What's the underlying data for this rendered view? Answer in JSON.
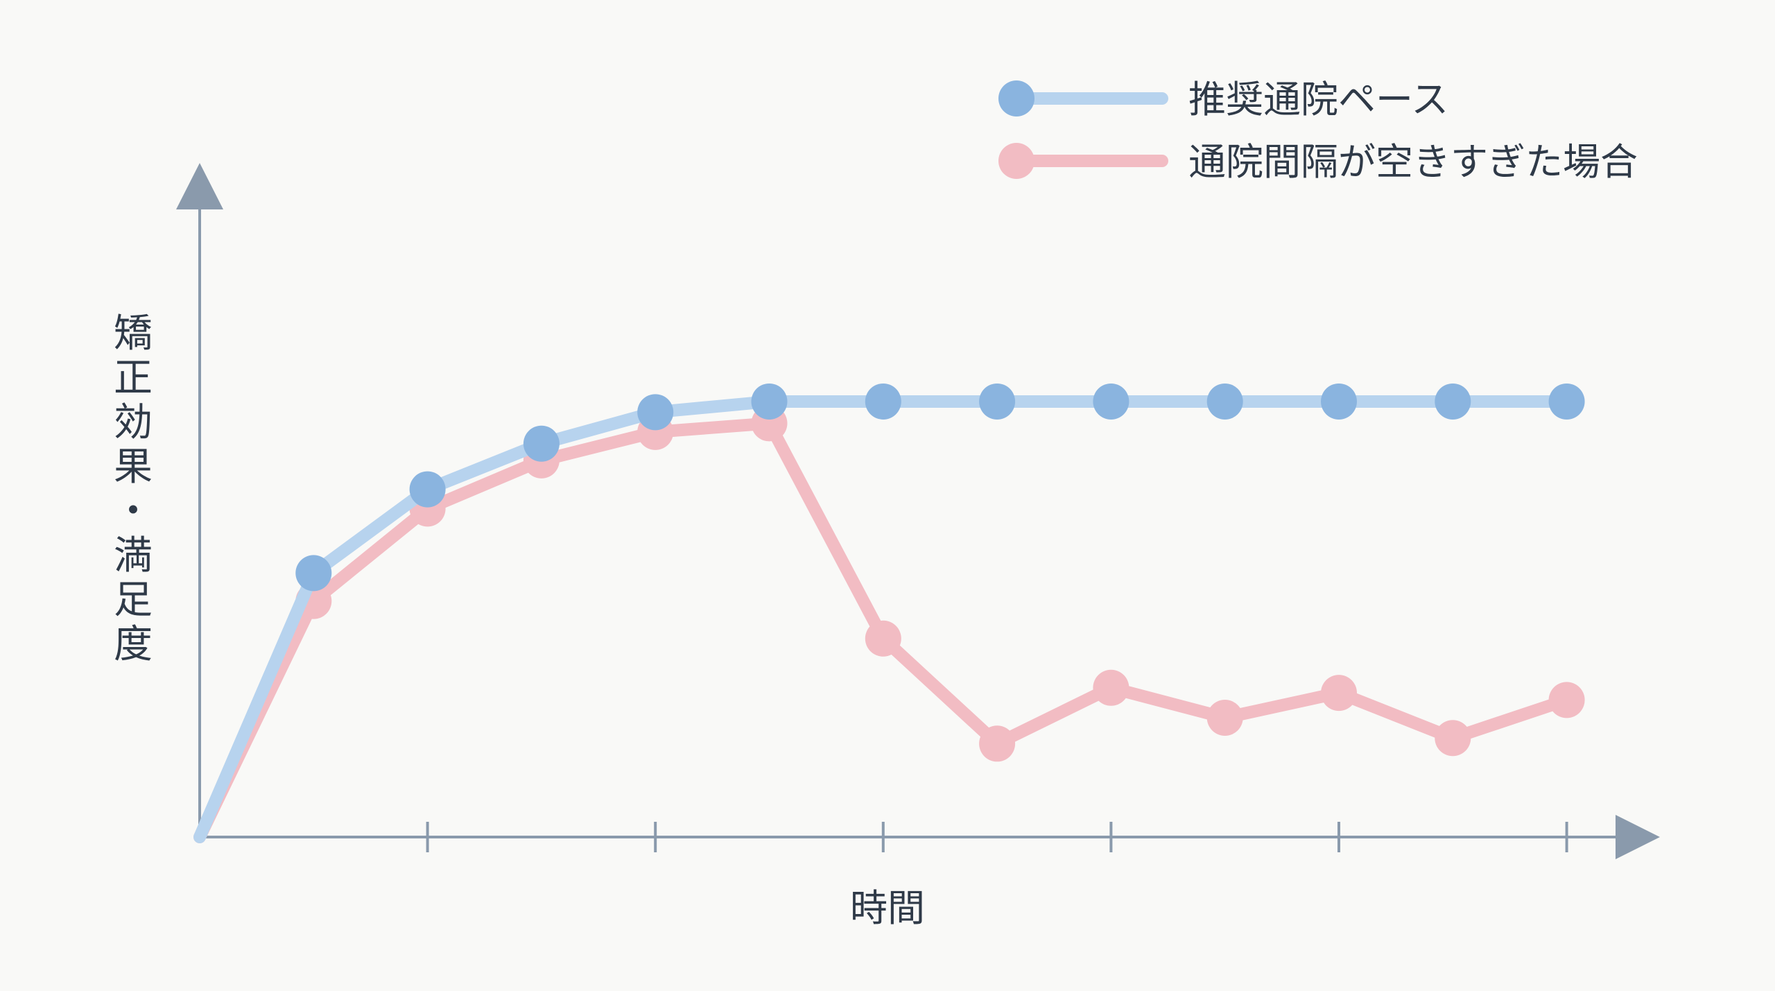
{
  "chart_data": {
    "type": "line",
    "xlabel": "時間",
    "ylabel": "矯正効果・満足度",
    "ylim": [
      0,
      100
    ],
    "x": [
      0,
      1,
      2,
      3,
      4,
      5,
      6,
      7,
      8,
      9,
      10,
      11,
      12
    ],
    "x_ticks": [
      2,
      4,
      6,
      8,
      10,
      12
    ],
    "tick_labels_shown": false,
    "grid": false,
    "legend": "top-right",
    "series": [
      {
        "name": "推奨通院ペース",
        "color": "#8ab4df",
        "line_color": "#b7d3ee",
        "values": [
          0,
          52,
          68.5,
          77.5,
          83.7,
          85.8,
          85.8,
          85.8,
          85.8,
          85.8,
          85.8,
          85.8,
          85.8
        ]
      },
      {
        "name": "通院間隔が空きすぎた場合",
        "color": "#f2bcc3",
        "line_color": "#f2bcc3",
        "values": [
          0,
          46.5,
          64.7,
          74.2,
          79.8,
          81.5,
          39.1,
          18.4,
          29.4,
          23.5,
          28.4,
          19.5,
          27.0
        ]
      }
    ]
  }
}
